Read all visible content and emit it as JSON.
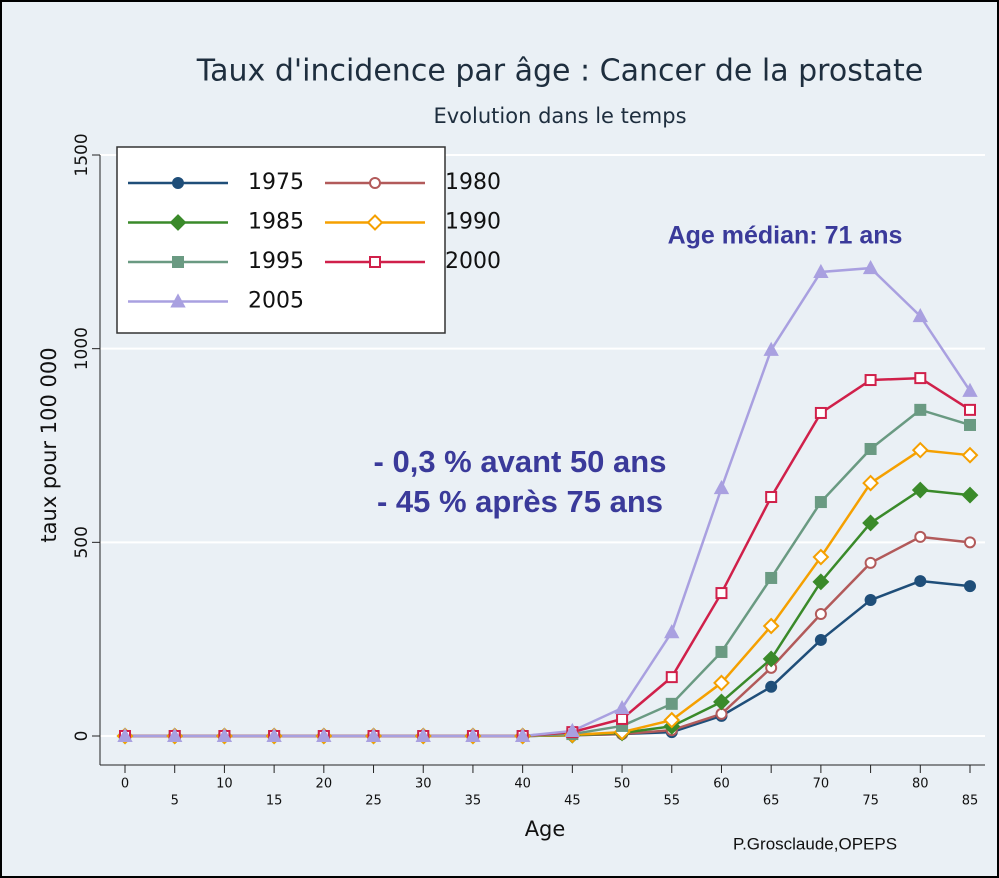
{
  "chart_data": {
    "type": "line",
    "title": "Taux d'incidence par âge : Cancer de la prostate",
    "subtitle": "Evolution dans le temps",
    "x_label": "Age",
    "y_label": "taux pour 100 000",
    "x": [
      0,
      5,
      10,
      15,
      20,
      25,
      30,
      35,
      40,
      45,
      50,
      55,
      60,
      65,
      70,
      75,
      80,
      85
    ],
    "xlim": [
      0,
      85
    ],
    "xticks": [
      0,
      5,
      10,
      15,
      20,
      25,
      30,
      35,
      40,
      45,
      50,
      55,
      60,
      65,
      70,
      75,
      80,
      85
    ],
    "ylim": [
      0,
      1500
    ],
    "yticks": [
      0,
      500,
      1000,
      1500
    ],
    "grid": true,
    "legend": "upper left",
    "series": [
      {
        "name": "1975",
        "color": "#1f4e79",
        "marker": "circle",
        "filled": true,
        "values": [
          0,
          0,
          0,
          0,
          0,
          0,
          0,
          0,
          0,
          2,
          5,
          10,
          52,
          127,
          248,
          351,
          400,
          387
        ]
      },
      {
        "name": "1980",
        "color": "#b25a5a",
        "marker": "circle",
        "filled": false,
        "values": [
          0,
          0,
          0,
          0,
          0,
          0,
          0,
          0,
          0,
          2,
          5,
          15,
          57,
          176,
          315,
          447,
          514,
          500
        ]
      },
      {
        "name": "1985",
        "color": "#3a8a2a",
        "marker": "diamond",
        "filled": true,
        "values": [
          0,
          0,
          0,
          0,
          0,
          0,
          0,
          0,
          0,
          2,
          8,
          25,
          88,
          199,
          398,
          550,
          635,
          622
        ]
      },
      {
        "name": "1990",
        "color": "#f5a000",
        "marker": "diamond",
        "filled": false,
        "values": [
          0,
          0,
          0,
          0,
          0,
          0,
          0,
          0,
          0,
          3,
          10,
          41,
          137,
          284,
          462,
          653,
          738,
          725
        ]
      },
      {
        "name": "1995",
        "color": "#6a9a82",
        "marker": "square",
        "filled": true,
        "values": [
          0,
          0,
          0,
          0,
          0,
          0,
          0,
          0,
          0,
          5,
          26,
          83,
          217,
          408,
          604,
          741,
          842,
          803
        ]
      },
      {
        "name": "2000",
        "color": "#d0204a",
        "marker": "square",
        "filled": false,
        "values": [
          0,
          0,
          0,
          0,
          0,
          0,
          0,
          0,
          0,
          10,
          44,
          152,
          369,
          617,
          834,
          919,
          924,
          842
        ]
      },
      {
        "name": "2005",
        "color": "#a9a0e0",
        "marker": "triangle",
        "filled": true,
        "values": [
          0,
          0,
          0,
          0,
          0,
          0,
          0,
          0,
          0,
          13,
          72,
          268,
          640,
          997,
          1198,
          1208,
          1084,
          891
        ]
      }
    ],
    "annotations": [
      "Age médian: 71 ans",
      "- 0,3 % avant 50 ans",
      "- 45 %  après 75 ans"
    ],
    "source": "P.Grosclaude,OPEPS"
  }
}
